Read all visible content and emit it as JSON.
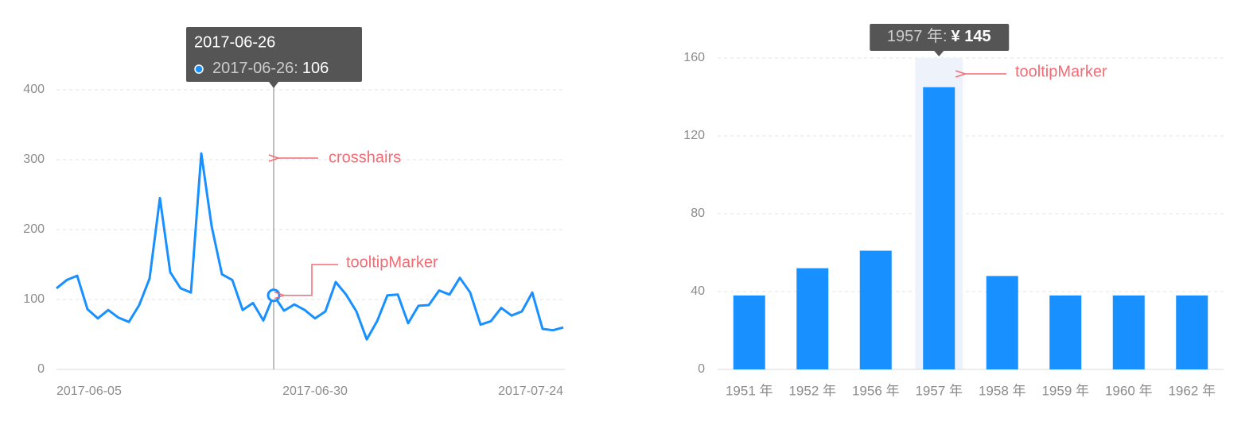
{
  "chart_data": [
    {
      "type": "line",
      "color": "#1890ff",
      "x": [
        "2017-06-05",
        "2017-06-06",
        "2017-06-07",
        "2017-06-08",
        "2017-06-09",
        "2017-06-10",
        "2017-06-11",
        "2017-06-12",
        "2017-06-13",
        "2017-06-14",
        "2017-06-15",
        "2017-06-16",
        "2017-06-17",
        "2017-06-18",
        "2017-06-19",
        "2017-06-20",
        "2017-06-21",
        "2017-06-22",
        "2017-06-23",
        "2017-06-24",
        "2017-06-25",
        "2017-06-26",
        "2017-06-27",
        "2017-06-28",
        "2017-06-29",
        "2017-06-30",
        "2017-07-01",
        "2017-07-02",
        "2017-07-03",
        "2017-07-04",
        "2017-07-05",
        "2017-07-06",
        "2017-07-07",
        "2017-07-08",
        "2017-07-09",
        "2017-07-10",
        "2017-07-11",
        "2017-07-12",
        "2017-07-13",
        "2017-07-14",
        "2017-07-15",
        "2017-07-16",
        "2017-07-17",
        "2017-07-18",
        "2017-07-19",
        "2017-07-20",
        "2017-07-21",
        "2017-07-22",
        "2017-07-23",
        "2017-07-24"
      ],
      "values": [
        116,
        128,
        134,
        86,
        73,
        85,
        74,
        68,
        92,
        130,
        245,
        139,
        116,
        110,
        309,
        205,
        136,
        128,
        85,
        95,
        70,
        106,
        84,
        93,
        85,
        73,
        83,
        125,
        107,
        83,
        43,
        69,
        106,
        107,
        66,
        91,
        92,
        113,
        107,
        131,
        110,
        64,
        69,
        88,
        77,
        83,
        110,
        58,
        56,
        60
      ],
      "xlim": [
        "2017-06-05",
        "2017-07-24"
      ],
      "xticks": [
        "2017-06-05",
        "2017-06-30",
        "2017-07-24"
      ],
      "ylim": [
        0,
        400
      ],
      "yticks": [
        0,
        100,
        200,
        300,
        400
      ],
      "grid": true,
      "tooltip": {
        "title": "2017-06-26",
        "item_name": "2017-06-26:",
        "item_value": 106
      },
      "annotations": [
        "crosshairs",
        "tooltipMarker"
      ]
    },
    {
      "type": "bar",
      "color": "#1890ff",
      "categories": [
        "1951 年",
        "1952 年",
        "1956 年",
        "1957 年",
        "1958 年",
        "1959 年",
        "1960 年",
        "1962 年"
      ],
      "values": [
        38,
        52,
        61,
        145,
        48,
        38,
        38,
        38
      ],
      "ylim": [
        0,
        160
      ],
      "yticks": [
        0,
        40,
        80,
        120,
        160
      ],
      "grid": true,
      "tooltip": {
        "name": "1957 年:",
        "value": "¥ 145"
      },
      "annotations": [
        "tooltipMarker"
      ]
    }
  ]
}
